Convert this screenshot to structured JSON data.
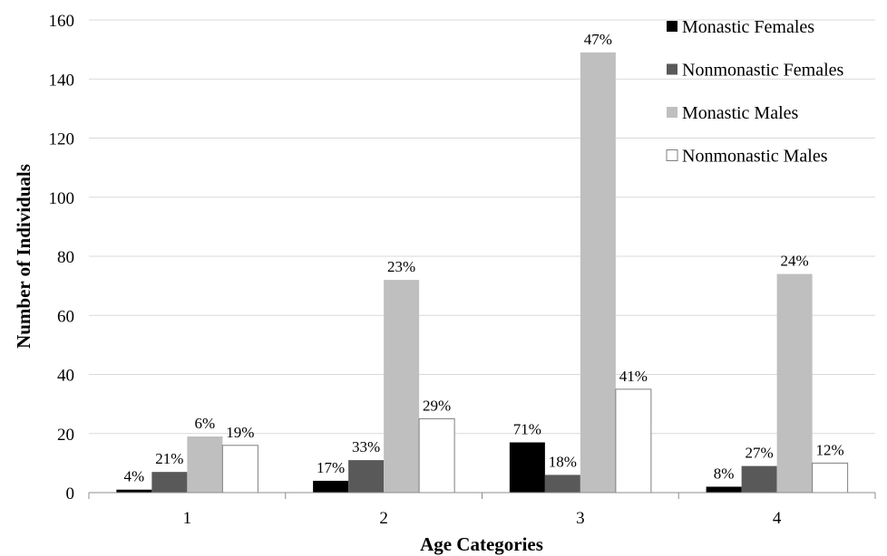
{
  "chart_data": {
    "type": "bar",
    "categories": [
      "1",
      "2",
      "3",
      "4"
    ],
    "xlabel": "Age Categories",
    "ylabel": "Number of Individuals",
    "ylim": [
      0,
      160
    ],
    "yticks": [
      0,
      20,
      40,
      60,
      80,
      100,
      120,
      140,
      160
    ],
    "grid": true,
    "legend_position": "top-right",
    "series": [
      {
        "name": "Monastic Females",
        "color": "#000000",
        "values": [
          1,
          4,
          17,
          2
        ],
        "labels": [
          "4%",
          "17%",
          "71%",
          "8%"
        ]
      },
      {
        "name": "Nonmonastic Females",
        "color": "#595959",
        "values": [
          7,
          11,
          6,
          9
        ],
        "labels": [
          "21%",
          "33%",
          "18%",
          "27%"
        ]
      },
      {
        "name": "Monastic Males",
        "color": "#bfbfbf",
        "values": [
          19,
          72,
          149,
          74
        ],
        "labels": [
          "6%",
          "23%",
          "47%",
          "24%"
        ]
      },
      {
        "name": "Nonmonastic Males",
        "color": "#ffffff",
        "values": [
          16,
          25,
          35,
          10
        ],
        "labels": [
          "19%",
          "29%",
          "41%",
          "12%"
        ]
      }
    ]
  }
}
